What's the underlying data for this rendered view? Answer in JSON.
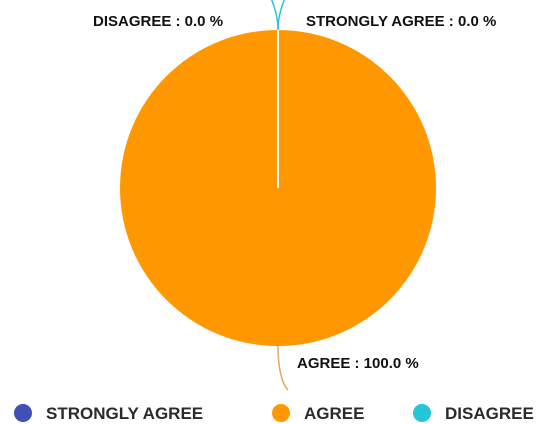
{
  "chart_data": {
    "type": "pie",
    "series": [
      {
        "name": "STRONGLY AGREE",
        "value": 0.0,
        "color": "#3f51b5"
      },
      {
        "name": "AGREE",
        "value": 100.0,
        "color": "#ff9800"
      },
      {
        "name": "DISAGREE",
        "value": 0.0,
        "color": "#26c6da"
      }
    ],
    "slice_labels": [
      "STRONGLY AGREE : 0.0 %",
      "AGREE : 100.0 %",
      "DISAGREE : 0.0 %"
    ],
    "legend_placement": "bottom",
    "line_color": "#e0a85c"
  }
}
